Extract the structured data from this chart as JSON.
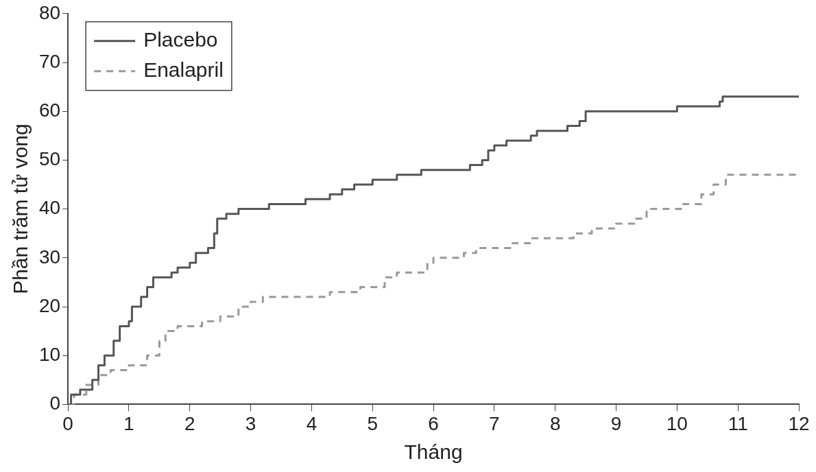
{
  "chart_data": {
    "type": "step",
    "xlabel": "Tháng",
    "ylabel": "Phần trăm tử vong",
    "xlim": [
      0,
      12
    ],
    "xticks": [
      0,
      1,
      2,
      3,
      4,
      5,
      6,
      7,
      8,
      9,
      10,
      11,
      12
    ],
    "ylim": [
      0,
      80
    ],
    "yticks": [
      0,
      10,
      20,
      30,
      40,
      50,
      60,
      70,
      80
    ],
    "grid": false,
    "legend": "top left",
    "marker": "none",
    "series": [
      {
        "name": "Placebo",
        "color": "#555555",
        "line_style": "solid",
        "x": [
          0,
          0.05,
          0.2,
          0.4,
          0.5,
          0.6,
          0.75,
          0.85,
          1.0,
          1.05,
          1.2,
          1.3,
          1.4,
          1.7,
          1.8,
          2.0,
          2.1,
          2.3,
          2.4,
          2.45,
          2.6,
          2.8,
          3.3,
          3.9,
          4.3,
          4.5,
          4.7,
          5.0,
          5.4,
          5.8,
          6.6,
          6.8,
          6.9,
          7.0,
          7.2,
          7.6,
          7.7,
          8.2,
          8.4,
          8.5,
          9.9,
          10.0,
          10.7,
          10.75,
          12
        ],
        "values": [
          0,
          2,
          3,
          5,
          8,
          10,
          13,
          16,
          17,
          20,
          22,
          24,
          26,
          27,
          28,
          29,
          31,
          32,
          35,
          38,
          39,
          40,
          41,
          42,
          43,
          44,
          45,
          46,
          47,
          48,
          49,
          50,
          52,
          53,
          54,
          55,
          56,
          57,
          58,
          60,
          60,
          61,
          62,
          63,
          63
        ]
      },
      {
        "name": "Enalapril",
        "color": "#999999",
        "line_style": "dashed",
        "x": [
          0,
          0.1,
          0.3,
          0.5,
          0.7,
          1.0,
          1.3,
          1.5,
          1.6,
          1.8,
          2.2,
          2.5,
          2.8,
          3.0,
          3.2,
          4.3,
          4.8,
          5.2,
          5.4,
          5.9,
          6.0,
          6.5,
          6.7,
          7.3,
          7.6,
          8.3,
          8.6,
          9.0,
          9.3,
          9.5,
          10.1,
          10.4,
          10.6,
          10.8,
          12
        ],
        "values": [
          0,
          2,
          4,
          6,
          7,
          8,
          10,
          13,
          15,
          16,
          17,
          18,
          20,
          21,
          22,
          23,
          24,
          26,
          27,
          29,
          30,
          31,
          32,
          33,
          34,
          35,
          36,
          37,
          38,
          40,
          41,
          43,
          45,
          47,
          47
        ]
      }
    ]
  }
}
